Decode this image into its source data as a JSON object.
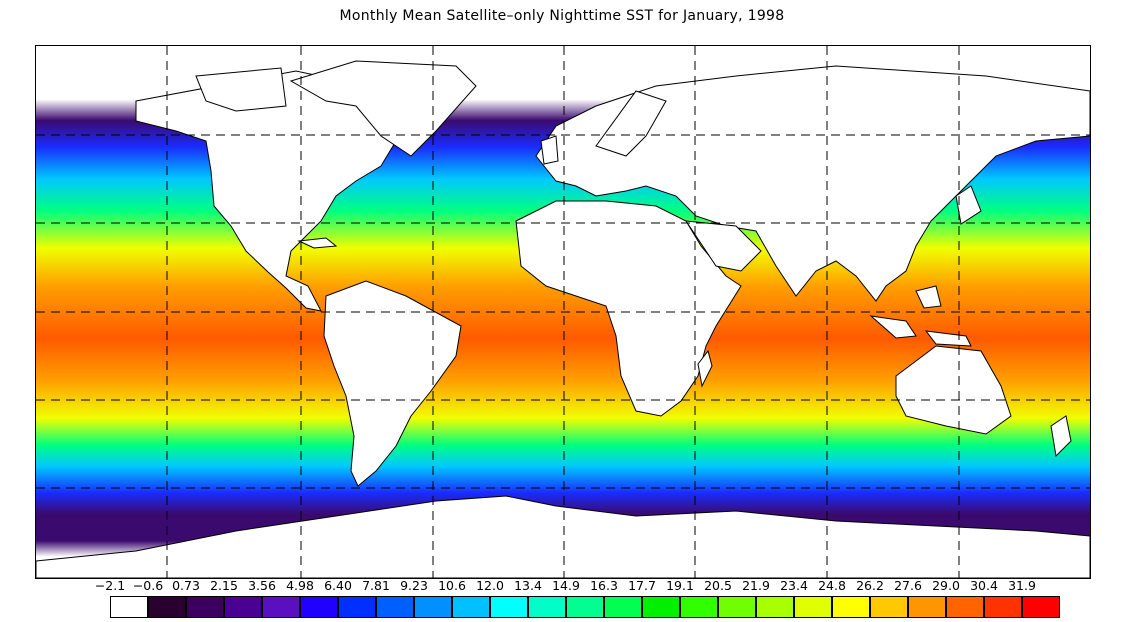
{
  "title": "Monthly Mean Satellite–only Nighttime SST for January, 1998",
  "legend": {
    "labels": [
      "−2.1",
      "−0.6",
      "0.73",
      "2.15",
      "3.56",
      "4.98",
      "6.40",
      "7.81",
      "9.23",
      "10.6",
      "12.0",
      "13.4",
      "14.9",
      "16.3",
      "17.7",
      "19.1",
      "20.5",
      "21.9",
      "23.4",
      "24.8",
      "26.2",
      "27.6",
      "29.0",
      "30.4",
      "31.9"
    ],
    "colors": [
      "#ffffff",
      "#2a0030",
      "#3c0060",
      "#4a0090",
      "#5a10c0",
      "#2000ff",
      "#0030ff",
      "#0060ff",
      "#0090ff",
      "#00c0ff",
      "#00ffff",
      "#00ffc8",
      "#00ff90",
      "#00ff50",
      "#00f000",
      "#30ff00",
      "#70ff00",
      "#a8ff00",
      "#e0ff00",
      "#ffff00",
      "#ffc800",
      "#ff9600",
      "#ff6400",
      "#ff3200",
      "#ff0000"
    ]
  },
  "map": {
    "colors": {
      "land": "#ffffff",
      "land_outline": "#000000",
      "polar": "#3b0a6e",
      "cold": "#1a2cff",
      "cool": "#00c8ff",
      "mid": "#00ff80",
      "warm": "#f0ff00",
      "hot": "#ffa000",
      "hottest": "#ff5a00"
    }
  }
}
